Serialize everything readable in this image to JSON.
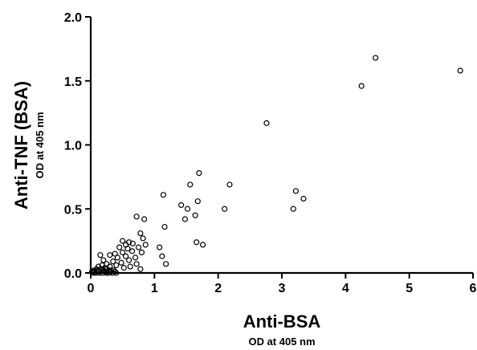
{
  "chart_data": {
    "type": "scatter",
    "xlabel": "Anti-BSA",
    "xlabel_sub": "OD at 405 nm",
    "ylabel": "Anti-TNF (BSA)",
    "ylabel_sub": "OD at 405 nm",
    "xlim": [
      0,
      6
    ],
    "ylim": [
      0,
      2.0
    ],
    "x_ticks": [
      "0",
      "1",
      "2",
      "3",
      "4",
      "5",
      "6"
    ],
    "y_ticks": [
      "0.0",
      "0.5",
      "1.0",
      "1.5",
      "2.0"
    ],
    "grid": false,
    "marker_color": "#000000",
    "points": [
      {
        "x": 0.02,
        "y": 0.01
      },
      {
        "x": 0.04,
        "y": 0.0
      },
      {
        "x": 0.05,
        "y": 0.02
      },
      {
        "x": 0.06,
        "y": 0.01
      },
      {
        "x": 0.08,
        "y": 0.0
      },
      {
        "x": 0.09,
        "y": 0.03
      },
      {
        "x": 0.1,
        "y": 0.01
      },
      {
        "x": 0.12,
        "y": 0.02
      },
      {
        "x": 0.13,
        "y": 0.0
      },
      {
        "x": 0.15,
        "y": 0.01
      },
      {
        "x": 0.16,
        "y": 0.03
      },
      {
        "x": 0.18,
        "y": 0.0
      },
      {
        "x": 0.2,
        "y": 0.02
      },
      {
        "x": 0.22,
        "y": 0.01
      },
      {
        "x": 0.24,
        "y": 0.0
      },
      {
        "x": 0.25,
        "y": 0.03
      },
      {
        "x": 0.27,
        "y": 0.01
      },
      {
        "x": 0.28,
        "y": 0.0
      },
      {
        "x": 0.3,
        "y": 0.02
      },
      {
        "x": 0.32,
        "y": 0.01
      },
      {
        "x": 0.34,
        "y": 0.0
      },
      {
        "x": 0.36,
        "y": 0.02
      },
      {
        "x": 0.38,
        "y": 0.01
      },
      {
        "x": 0.4,
        "y": 0.0
      },
      {
        "x": 0.12,
        "y": 0.05
      },
      {
        "x": 0.18,
        "y": 0.06
      },
      {
        "x": 0.22,
        "y": 0.04
      },
      {
        "x": 0.15,
        "y": 0.14
      },
      {
        "x": 0.2,
        "y": 0.1
      },
      {
        "x": 0.25,
        "y": 0.07
      },
      {
        "x": 0.3,
        "y": 0.05
      },
      {
        "x": 0.3,
        "y": 0.14
      },
      {
        "x": 0.35,
        "y": 0.09
      },
      {
        "x": 0.38,
        "y": 0.15
      },
      {
        "x": 0.4,
        "y": 0.06
      },
      {
        "x": 0.42,
        "y": 0.12
      },
      {
        "x": 0.45,
        "y": 0.2
      },
      {
        "x": 0.48,
        "y": 0.08
      },
      {
        "x": 0.5,
        "y": 0.16
      },
      {
        "x": 0.5,
        "y": 0.25
      },
      {
        "x": 0.52,
        "y": 0.04
      },
      {
        "x": 0.55,
        "y": 0.22
      },
      {
        "x": 0.55,
        "y": 0.13
      },
      {
        "x": 0.58,
        "y": 0.19
      },
      {
        "x": 0.6,
        "y": 0.1
      },
      {
        "x": 0.6,
        "y": 0.24
      },
      {
        "x": 0.62,
        "y": 0.05
      },
      {
        "x": 0.65,
        "y": 0.17
      },
      {
        "x": 0.66,
        "y": 0.23
      },
      {
        "x": 0.7,
        "y": 0.12
      },
      {
        "x": 0.72,
        "y": 0.07
      },
      {
        "x": 0.72,
        "y": 0.44
      },
      {
        "x": 0.75,
        "y": 0.2
      },
      {
        "x": 0.78,
        "y": 0.31
      },
      {
        "x": 0.78,
        "y": 0.03
      },
      {
        "x": 0.8,
        "y": 0.16
      },
      {
        "x": 0.82,
        "y": 0.27
      },
      {
        "x": 0.84,
        "y": 0.42
      },
      {
        "x": 0.86,
        "y": 0.22
      },
      {
        "x": 1.08,
        "y": 0.2
      },
      {
        "x": 1.12,
        "y": 0.13
      },
      {
        "x": 1.14,
        "y": 0.61
      },
      {
        "x": 1.16,
        "y": 0.36
      },
      {
        "x": 1.18,
        "y": 0.07
      },
      {
        "x": 1.42,
        "y": 0.53
      },
      {
        "x": 1.48,
        "y": 0.42
      },
      {
        "x": 1.52,
        "y": 0.5
      },
      {
        "x": 1.56,
        "y": 0.69
      },
      {
        "x": 1.64,
        "y": 0.45
      },
      {
        "x": 1.66,
        "y": 0.24
      },
      {
        "x": 1.68,
        "y": 0.56
      },
      {
        "x": 1.7,
        "y": 0.78
      },
      {
        "x": 1.76,
        "y": 0.22
      },
      {
        "x": 2.1,
        "y": 0.5
      },
      {
        "x": 2.18,
        "y": 0.69
      },
      {
        "x": 2.76,
        "y": 1.17
      },
      {
        "x": 3.18,
        "y": 0.5
      },
      {
        "x": 3.22,
        "y": 0.64
      },
      {
        "x": 3.34,
        "y": 0.58
      },
      {
        "x": 4.25,
        "y": 1.46
      },
      {
        "x": 4.47,
        "y": 1.68
      },
      {
        "x": 5.8,
        "y": 1.58
      }
    ]
  }
}
